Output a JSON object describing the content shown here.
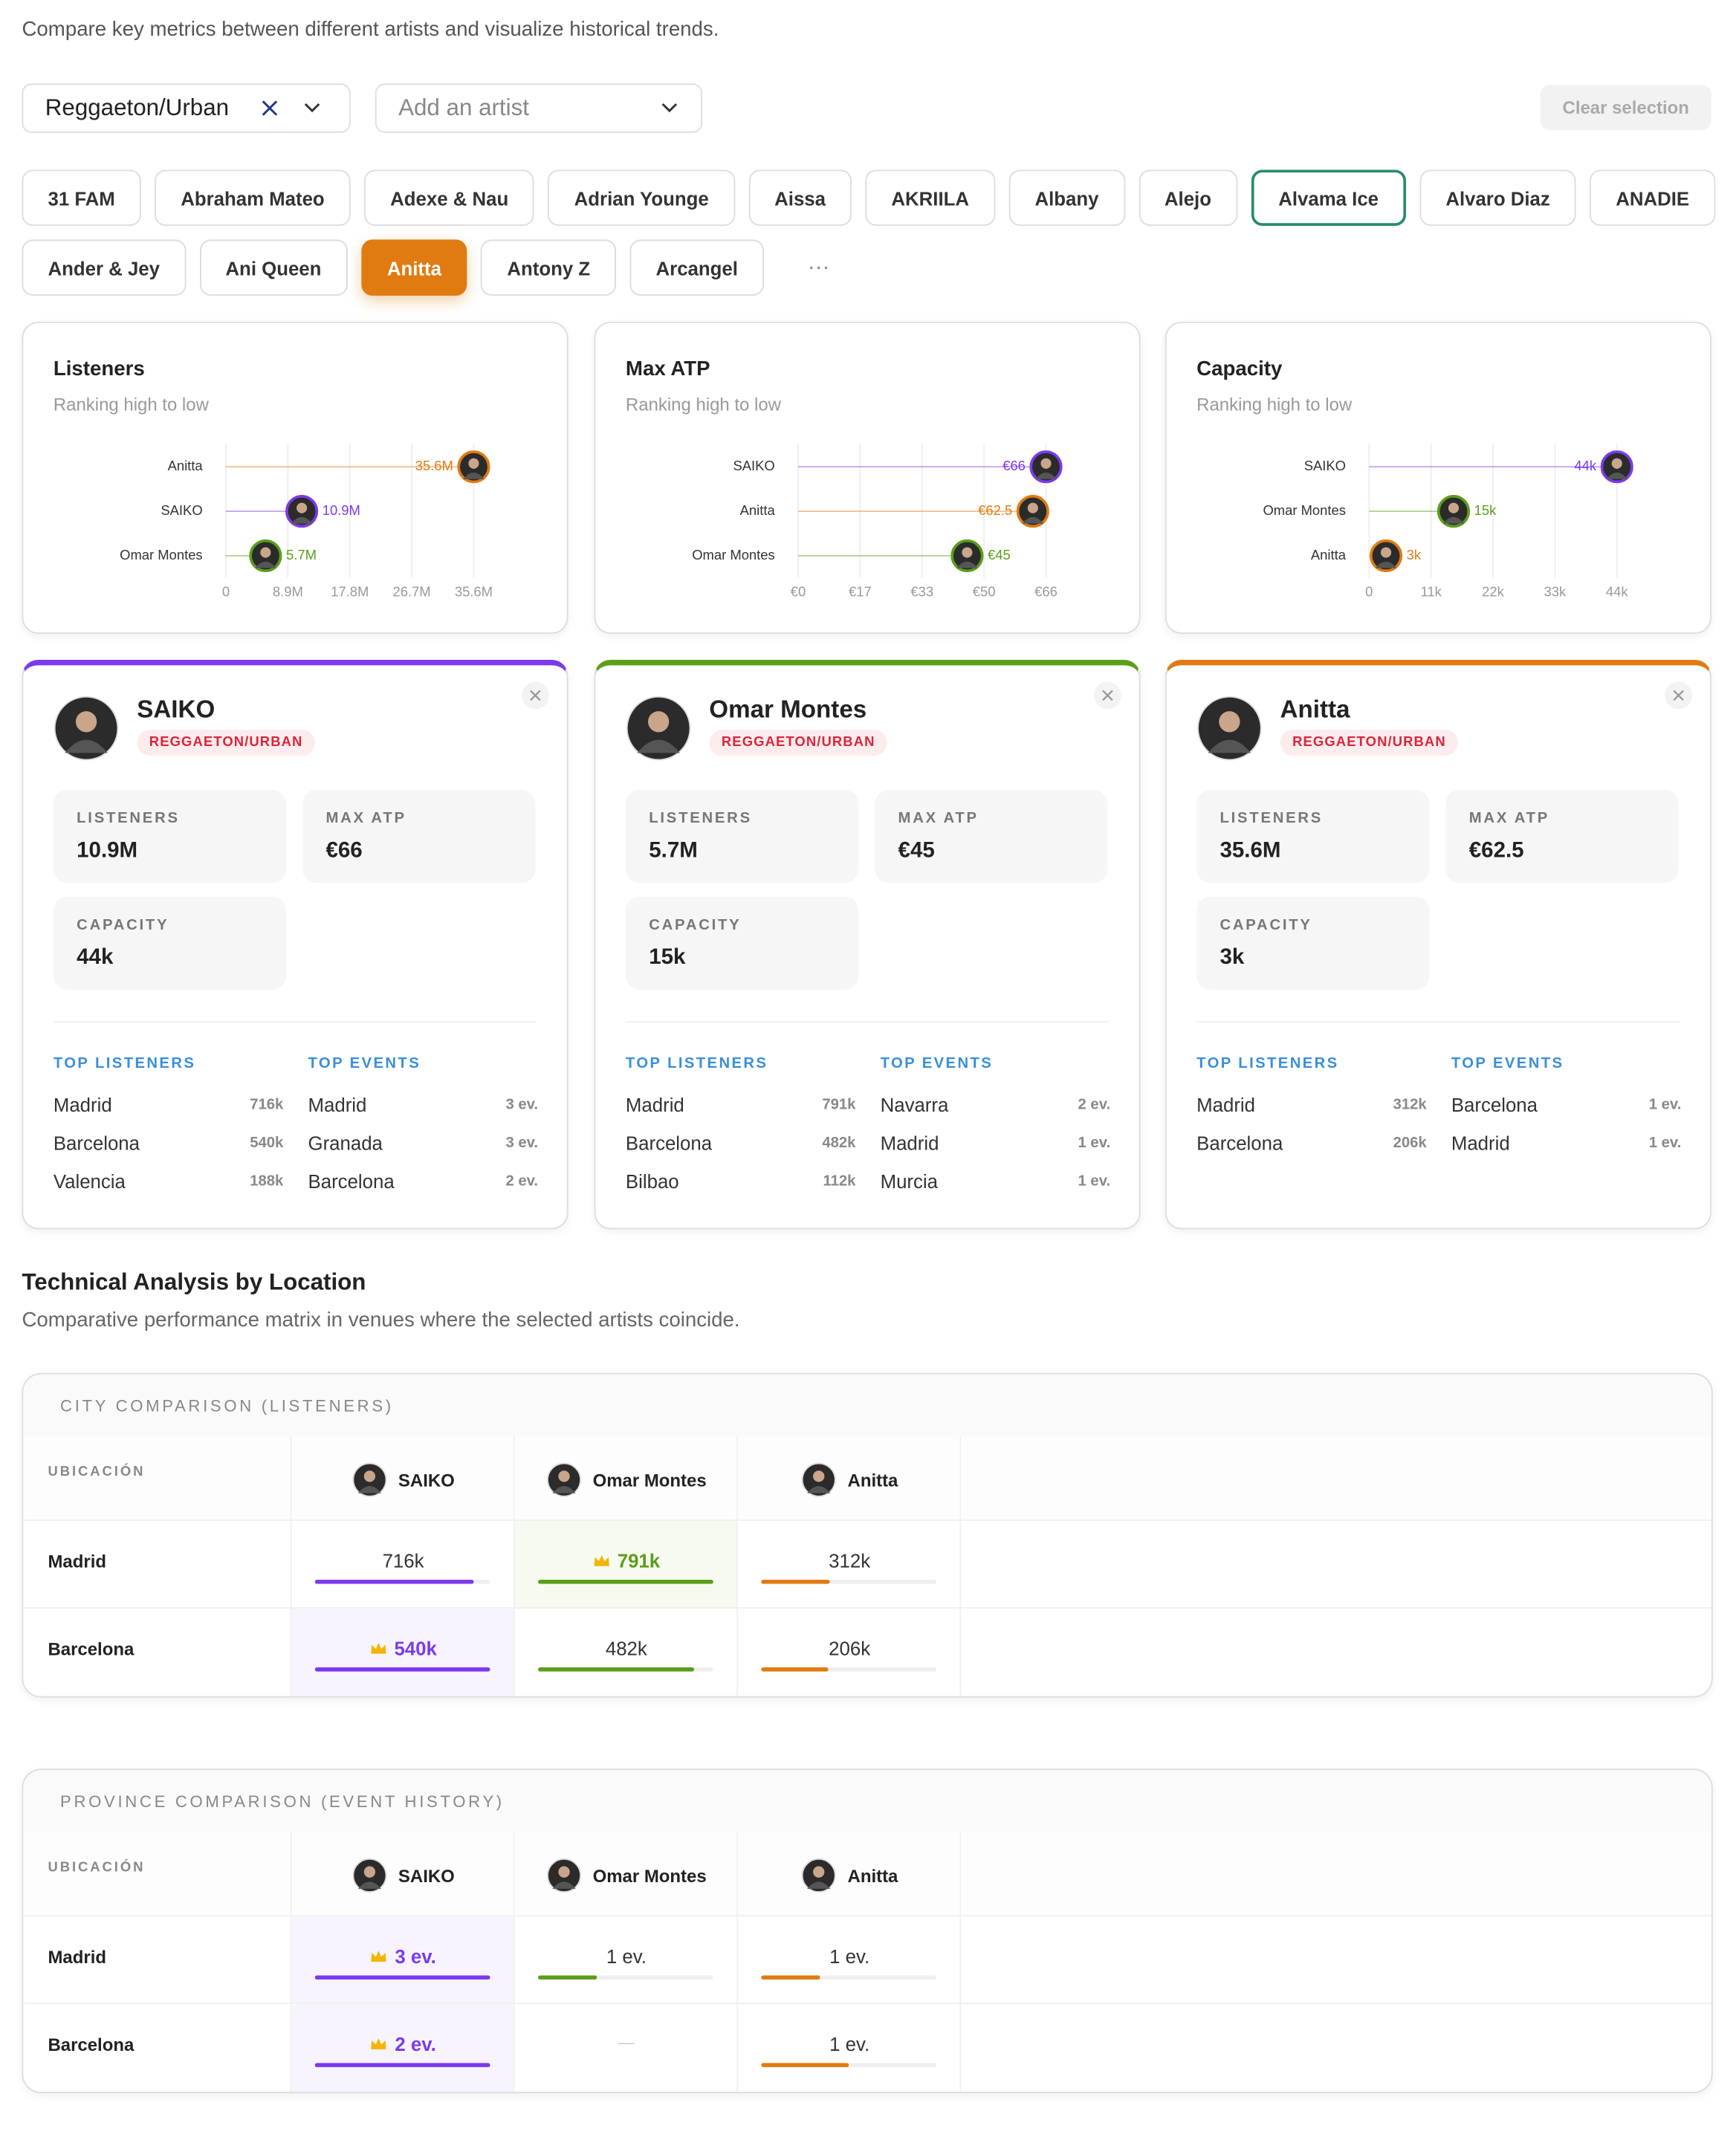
{
  "subtitle": "Compare key metrics between different artists and visualize historical trends.",
  "genre_filter": "Reggaeton/Urban",
  "artist_search": "Add an artist",
  "clear_button": "Clear selection",
  "artists": [
    {
      "name": "31 FAM"
    },
    {
      "name": "Abraham Mateo"
    },
    {
      "name": "Adexe & Nau"
    },
    {
      "name": "Adrian Younge"
    },
    {
      "name": "Aissa"
    },
    {
      "name": "AKRIILA"
    },
    {
      "name": "Albany"
    },
    {
      "name": "Alejo"
    },
    {
      "name": "Alvama Ice",
      "state": "focused"
    },
    {
      "name": "Alvaro Diaz"
    },
    {
      "name": "ANADIE"
    },
    {
      "name": "Ander & Jey"
    },
    {
      "name": "Ani Queen"
    },
    {
      "name": "Anitta",
      "state": "selected"
    },
    {
      "name": "Antony Z"
    },
    {
      "name": "Arcangel"
    }
  ],
  "more": "···",
  "charts": [
    {
      "type": "lollipop",
      "title": "Listeners",
      "subtitle": "Ranking high to low",
      "categories": [
        "Anitta",
        "SAIKO",
        "Omar Montes"
      ],
      "values": [
        35.6,
        10.9,
        5.7
      ],
      "value_labels": [
        "35.6M",
        "10.9M",
        "5.7M"
      ],
      "colors": [
        "#e07b12",
        "#7c3aed",
        "#5a9e1a"
      ],
      "xlim": [
        0,
        35.6
      ],
      "xticks": [
        0,
        {
          "value": 8.9,
          "label": "8.9M"
        },
        {
          "value": 17.8,
          "label": "17.8M"
        },
        {
          "value": 26.7,
          "label": "26.7M"
        },
        {
          "value": 35.6,
          "label": "35.6M"
        }
      ]
    },
    {
      "type": "lollipop",
      "title": "Max ATP",
      "subtitle": "Ranking high to low",
      "categories": [
        "SAIKO",
        "Anitta",
        "Omar Montes"
      ],
      "values": [
        66,
        62.5,
        45
      ],
      "value_labels": [
        "€66",
        "€62.5",
        "€45"
      ],
      "colors": [
        "#7c3aed",
        "#e07b12",
        "#5a9e1a"
      ],
      "xlim": [
        0,
        66
      ],
      "xticks": [
        {
          "value": 0,
          "label": "€0"
        },
        {
          "value": 16.5,
          "label": "€17"
        },
        {
          "value": 33,
          "label": "€33"
        },
        {
          "value": 49.5,
          "label": "€50"
        },
        {
          "value": 66,
          "label": "€66"
        }
      ]
    },
    {
      "type": "lollipop",
      "title": "Capacity",
      "subtitle": "Ranking high to low",
      "categories": [
        "SAIKO",
        "Omar Montes",
        "Anitta"
      ],
      "values": [
        44,
        15,
        3
      ],
      "value_labels": [
        "44k",
        "15k",
        "3k"
      ],
      "colors": [
        "#7c3aed",
        "#5a9e1a",
        "#e07b12"
      ],
      "xlim": [
        0,
        44
      ],
      "xticks": [
        0,
        {
          "value": 11,
          "label": "11k"
        },
        {
          "value": 22,
          "label": "22k"
        },
        {
          "value": 33,
          "label": "33k"
        },
        {
          "value": 44,
          "label": "44k"
        }
      ]
    }
  ],
  "metric_labels": [
    "LISTENERS",
    "MAX ATP",
    "CAPACITY"
  ],
  "top_listeners_label": "TOP LISTENERS",
  "top_events_label": "TOP EVENTS",
  "cards": [
    {
      "name": "SAIKO",
      "genre": "REGGAETON/URBAN",
      "color": "#7c3aed",
      "metrics": [
        "10.9M",
        "€66",
        "44k"
      ],
      "top_listeners": [
        [
          "Madrid",
          "716k"
        ],
        [
          "Barcelona",
          "540k"
        ],
        [
          "Valencia",
          "188k"
        ]
      ],
      "top_events": [
        [
          "Madrid",
          "3 ev."
        ],
        [
          "Granada",
          "3 ev."
        ],
        [
          "Barcelona",
          "2 ev."
        ]
      ]
    },
    {
      "name": "Omar Montes",
      "genre": "REGGAETON/URBAN",
      "color": "#5a9e1a",
      "metrics": [
        "5.7M",
        "€45",
        "15k"
      ],
      "top_listeners": [
        [
          "Madrid",
          "791k"
        ],
        [
          "Barcelona",
          "482k"
        ],
        [
          "Bilbao",
          "112k"
        ]
      ],
      "top_events": [
        [
          "Navarra",
          "2 ev."
        ],
        [
          "Madrid",
          "1 ev."
        ],
        [
          "Murcia",
          "1 ev."
        ]
      ]
    },
    {
      "name": "Anitta",
      "genre": "REGGAETON/URBAN",
      "color": "#e07b12",
      "metrics": [
        "35.6M",
        "€62.5",
        "3k"
      ],
      "top_listeners": [
        [
          "Madrid",
          "312k"
        ],
        [
          "Barcelona",
          "206k"
        ]
      ],
      "top_events": [
        [
          "Barcelona",
          "1 ev."
        ],
        [
          "Madrid",
          "1 ev."
        ]
      ]
    }
  ],
  "analysis": {
    "title": "Technical Analysis by Location",
    "subtitle": "Comparative performance matrix in venues where the selected artists coincide.",
    "tables": [
      {
        "title": "CITY COMPARISON (LISTENERS)",
        "location_label": "UBICACIÓN",
        "columns": [
          "SAIKO",
          "Omar Montes",
          "Anitta"
        ],
        "colors": [
          "#7c3aed",
          "#5a9e1a",
          "#e07b12"
        ],
        "rows": [
          {
            "location": "Madrid",
            "values": [
              716,
              791,
              312
            ],
            "value_labels": [
              "716k",
              "791k",
              "312k"
            ]
          },
          {
            "location": "Barcelona",
            "values": [
              540,
              482,
              206
            ],
            "value_labels": [
              "540k",
              "482k",
              "206k"
            ]
          }
        ]
      },
      {
        "title": "PROVINCE COMPARISON (EVENT HISTORY)",
        "location_label": "UBICACIÓN",
        "columns": [
          "SAIKO",
          "Omar Montes",
          "Anitta"
        ],
        "colors": [
          "#7c3aed",
          "#5a9e1a",
          "#e07b12"
        ],
        "rows": [
          {
            "location": "Madrid",
            "values": [
              3,
              1,
              1
            ],
            "value_labels": [
              "3 ev.",
              "1 ev.",
              "1 ev."
            ]
          },
          {
            "location": "Barcelona",
            "values": [
              2,
              null,
              1
            ],
            "value_labels": [
              "2 ev.",
              "—",
              "1 ev."
            ]
          }
        ]
      }
    ]
  }
}
